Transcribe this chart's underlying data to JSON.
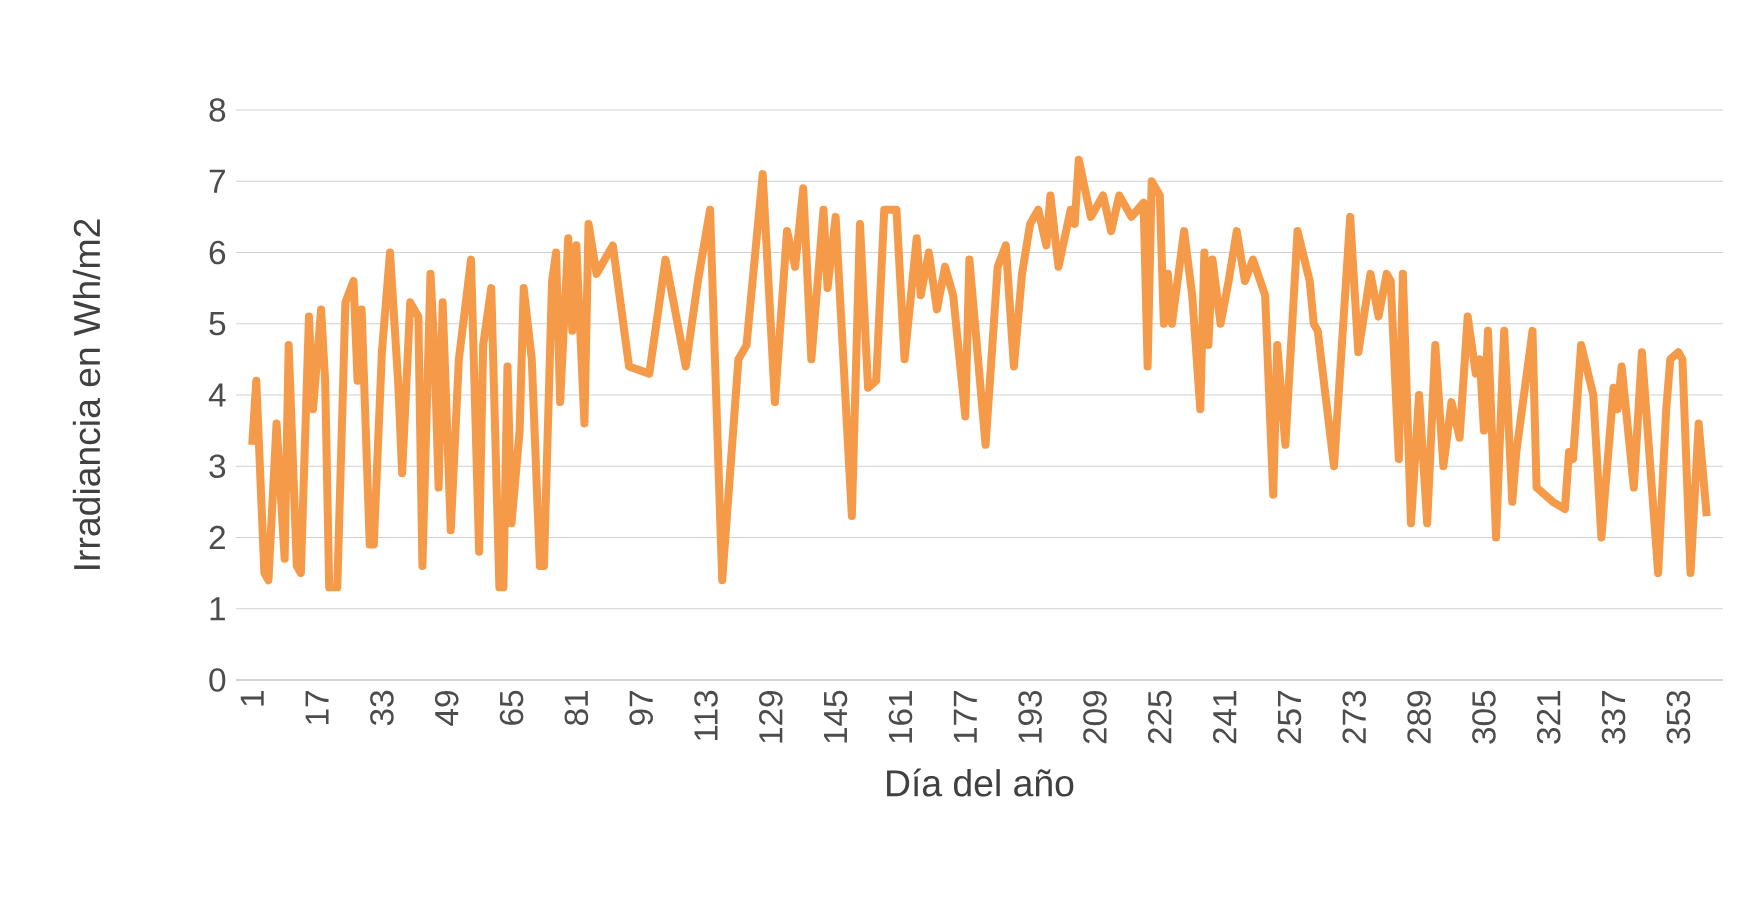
{
  "chart_data": {
    "type": "line",
    "xlabel": "Día del año",
    "ylabel": "Irradiancia en Wh/m2",
    "xlim": [
      -3,
      364
    ],
    "ylim": [
      0,
      8
    ],
    "xticks": [
      1,
      17,
      33,
      49,
      65,
      81,
      97,
      113,
      129,
      145,
      161,
      177,
      193,
      209,
      225,
      241,
      257,
      273,
      289,
      305,
      321,
      337,
      353
    ],
    "yticks": [
      0,
      1,
      2,
      3,
      4,
      5,
      6,
      7,
      8
    ],
    "grid": "y",
    "marker": "none",
    "line_style": "solid",
    "series": [
      {
        "color": "#f59a48",
        "x": [
          1,
          2,
          4,
          5,
          7,
          9,
          10,
          12,
          13,
          15,
          16,
          18,
          19,
          20,
          22,
          24,
          26,
          27,
          28,
          30,
          31,
          33,
          35,
          37,
          38,
          40,
          42,
          43,
          45,
          46,
          47,
          48,
          50,
          52,
          55,
          57,
          58,
          60,
          62,
          63,
          64,
          65,
          67,
          68,
          70,
          72,
          73,
          75,
          76,
          77,
          79,
          80,
          81,
          83,
          84,
          86,
          90,
          94,
          99,
          103,
          108,
          111,
          114,
          117,
          121,
          123,
          127,
          130,
          133,
          135,
          137,
          139,
          142,
          143,
          145,
          149,
          151,
          153,
          155,
          157,
          160,
          162,
          165,
          166,
          168,
          170,
          172,
          174,
          177,
          178,
          182,
          185,
          187,
          189,
          191,
          193,
          195,
          197,
          198,
          200,
          203,
          204,
          205,
          208,
          211,
          213,
          215,
          218,
          221,
          222,
          223,
          225,
          226,
          227,
          228,
          231,
          233,
          235,
          236,
          237,
          238,
          240,
          242,
          244,
          246,
          248,
          251,
          253,
          254,
          256,
          259,
          262,
          263,
          264,
          268,
          272,
          274,
          277,
          279,
          281,
          282,
          284,
          285,
          287,
          289,
          291,
          293,
          295,
          297,
          299,
          301,
          303,
          304,
          305,
          306,
          308,
          310,
          312,
          313,
          317,
          318,
          322,
          325,
          326,
          327,
          329,
          332,
          334,
          337,
          338,
          339,
          342,
          344,
          348,
          350,
          351,
          353,
          354,
          356,
          358,
          360
        ],
        "values": [
          3.3,
          4.2,
          1.5,
          1.4,
          3.6,
          1.7,
          4.7,
          1.6,
          1.5,
          5.1,
          3.8,
          5.2,
          4.2,
          1.3,
          1.3,
          5.3,
          5.6,
          4.2,
          5.2,
          1.9,
          1.9,
          4.6,
          6.0,
          4.2,
          2.9,
          5.3,
          5.1,
          1.6,
          5.7,
          4.6,
          2.7,
          5.3,
          2.1,
          4.5,
          5.9,
          1.8,
          4.7,
          5.5,
          1.3,
          1.3,
          4.4,
          2.2,
          3.5,
          5.5,
          4.5,
          1.6,
          1.6,
          5.6,
          6.0,
          3.9,
          6.2,
          4.9,
          6.1,
          3.6,
          6.4,
          5.7,
          6.1,
          4.4,
          4.3,
          5.9,
          4.4,
          5.6,
          6.6,
          1.4,
          4.5,
          4.7,
          7.1,
          3.9,
          6.3,
          5.8,
          6.9,
          4.5,
          6.6,
          5.5,
          6.5,
          2.3,
          6.4,
          4.1,
          4.2,
          6.6,
          6.6,
          4.5,
          6.2,
          5.4,
          6.0,
          5.2,
          5.8,
          5.4,
          3.7,
          5.9,
          3.3,
          5.8,
          6.1,
          4.4,
          5.7,
          6.4,
          6.6,
          6.1,
          6.8,
          5.8,
          6.6,
          6.4,
          7.3,
          6.5,
          6.8,
          6.3,
          6.8,
          6.5,
          6.7,
          4.4,
          7.0,
          6.8,
          5.0,
          5.7,
          5.0,
          6.3,
          5.4,
          3.8,
          6.0,
          4.7,
          5.9,
          5.0,
          5.6,
          6.3,
          5.6,
          5.9,
          5.4,
          2.6,
          4.7,
          3.3,
          6.3,
          5.6,
          5.0,
          4.9,
          3.0,
          6.5,
          4.6,
          5.7,
          5.1,
          5.7,
          5.6,
          3.1,
          5.7,
          2.2,
          4.0,
          2.2,
          4.7,
          3.0,
          3.9,
          3.4,
          5.1,
          4.3,
          4.5,
          3.5,
          4.9,
          2.0,
          4.9,
          2.5,
          3.2,
          4.9,
          2.7,
          2.5,
          2.4,
          3.2,
          3.1,
          4.7,
          4.0,
          2.0,
          4.1,
          3.8,
          4.4,
          2.7,
          4.6,
          1.5,
          3.8,
          4.5,
          4.6,
          4.5,
          1.5,
          3.6,
          2.3
        ]
      }
    ]
  }
}
